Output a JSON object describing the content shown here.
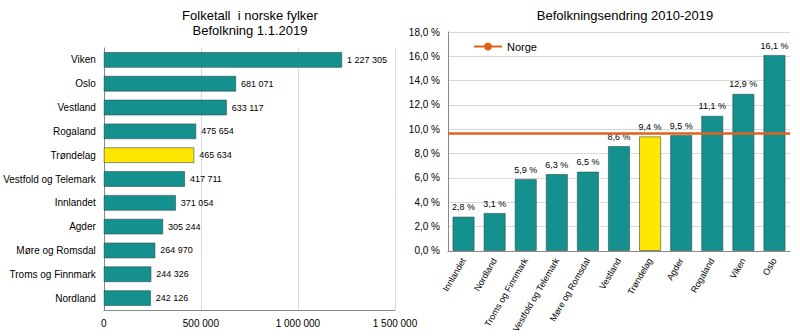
{
  "chart_data": [
    {
      "type": "bar",
      "orientation": "horizontal",
      "title": "Folketall  i norske fylker",
      "subtitle": "Befolkning 1.1.2019",
      "categories": [
        "Viken",
        "Oslo",
        "Vestland",
        "Rogaland",
        "Trøndelag",
        "Vestfold og Telemark",
        "Innlandet",
        "Agder",
        "Møre og Romsdal",
        "Troms og Finnmark",
        "Nordland"
      ],
      "values": [
        1227305,
        681071,
        633117,
        475654,
        465634,
        417711,
        371054,
        305244,
        264970,
        244326,
        242126
      ],
      "value_labels": [
        "1 227 305",
        "681 071",
        "633 117",
        "475 654",
        "465 634",
        "417 711",
        "371 054",
        "305 244",
        "264 970",
        "244 326",
        "242 126"
      ],
      "colors": [
        "#14918e",
        "#14918e",
        "#14918e",
        "#14918e",
        "#ffe600",
        "#14918e",
        "#14918e",
        "#14918e",
        "#14918e",
        "#14918e",
        "#14918e"
      ],
      "xlim": [
        0,
        1500000
      ],
      "xticks": [
        0,
        {
          "value": 500000,
          "label": "500 000"
        },
        {
          "value": 1000000,
          "label": "1 000 000"
        },
        {
          "value": 1500000,
          "label": "1 500 000"
        }
      ],
      "grid": true,
      "data_labels": true
    },
    {
      "type": "bar",
      "title": "Befolkningsendring 2010-2019",
      "categories": [
        "Innlandet",
        "Nordland",
        "Troms og Finnmark",
        "Vestfold og Telemark",
        "Møre og Romsdal",
        "Vestland",
        "Trøndelag",
        "Agder",
        "Rogaland",
        "Viken",
        "Oslo"
      ],
      "values": [
        2.8,
        3.1,
        5.9,
        6.3,
        6.5,
        8.6,
        9.4,
        9.5,
        11.1,
        12.9,
        16.1
      ],
      "value_labels": [
        "2,8 %",
        "3,1 %",
        "5,9 %",
        "6,3 %",
        "6,5 %",
        "8,6 %",
        "9,4 %",
        "9,5 %",
        "11,1 %",
        "12,9 %",
        "16,1 %"
      ],
      "colors": [
        "#14918e",
        "#14918e",
        "#14918e",
        "#14918e",
        "#14918e",
        "#14918e",
        "#ffe600",
        "#14918e",
        "#14918e",
        "#14918e",
        "#14918e"
      ],
      "ylim": [
        0,
        18
      ],
      "yticks": [
        {
          "value": 0,
          "label": "0,0 %"
        },
        {
          "value": 2,
          "label": "2,0 %"
        },
        {
          "value": 4,
          "label": "4,0 %"
        },
        {
          "value": 6,
          "label": "6,0 %"
        },
        {
          "value": 8,
          "label": "8,0 %"
        },
        {
          "value": 10,
          "label": "10,0 %"
        },
        {
          "value": 12,
          "label": "12,0 %"
        },
        {
          "value": 14,
          "label": "14,0 %"
        },
        {
          "value": 16,
          "label": "16,0 %"
        },
        {
          "value": 18,
          "label": "18,0 %"
        }
      ],
      "reference_line": {
        "name": "Norge",
        "value": 9.7,
        "color": "#e0601c"
      },
      "legend": "upper left",
      "grid": true,
      "data_labels": true
    }
  ]
}
